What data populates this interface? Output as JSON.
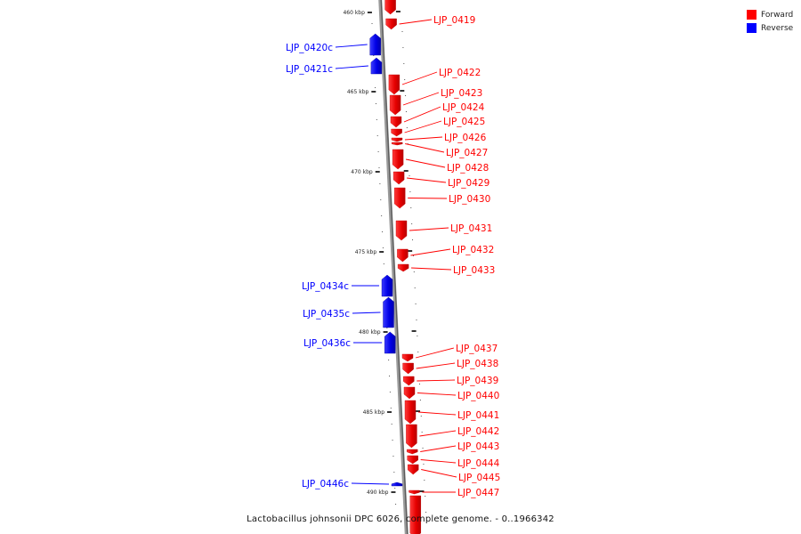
{
  "legend": [
    {
      "label": "Forward",
      "color": "#ff0000"
    },
    {
      "label": "Reverse",
      "color": "#0000ff"
    }
  ],
  "caption": "Lactobacillus johnsonii DPC 6026, complete genome. - 0..1966342",
  "ticks": [
    {
      "kbp": 460,
      "label": "460 kbp"
    },
    {
      "kbp": 465,
      "label": "465 kbp"
    },
    {
      "kbp": 470,
      "label": "470 kbp"
    },
    {
      "kbp": 475,
      "label": "475 kbp"
    },
    {
      "kbp": 480,
      "label": "480 kbp"
    },
    {
      "kbp": 485,
      "label": "485 kbp"
    },
    {
      "kbp": 490,
      "label": "490 kbp"
    }
  ],
  "genes": [
    {
      "name": "",
      "strand": "forward"
    },
    {
      "name": "LJP_0419",
      "strand": "forward"
    },
    {
      "name": "LJP_0420c",
      "strand": "reverse"
    },
    {
      "name": "LJP_0421c",
      "strand": "reverse"
    },
    {
      "name": "LJP_0422",
      "strand": "forward"
    },
    {
      "name": "LJP_0423",
      "strand": "forward"
    },
    {
      "name": "LJP_0424",
      "strand": "forward"
    },
    {
      "name": "LJP_0425",
      "strand": "forward"
    },
    {
      "name": "LJP_0426",
      "strand": "forward"
    },
    {
      "name": "LJP_0427",
      "strand": "forward"
    },
    {
      "name": "LJP_0428",
      "strand": "forward"
    },
    {
      "name": "LJP_0429",
      "strand": "forward"
    },
    {
      "name": "LJP_0430",
      "strand": "forward"
    },
    {
      "name": "LJP_0431",
      "strand": "forward"
    },
    {
      "name": "LJP_0432",
      "strand": "forward"
    },
    {
      "name": "LJP_0433",
      "strand": "forward"
    },
    {
      "name": "LJP_0434c",
      "strand": "reverse"
    },
    {
      "name": "LJP_0435c",
      "strand": "reverse"
    },
    {
      "name": "LJP_0436c",
      "strand": "reverse"
    },
    {
      "name": "LJP_0437",
      "strand": "forward"
    },
    {
      "name": "LJP_0438",
      "strand": "forward"
    },
    {
      "name": "LJP_0439",
      "strand": "forward"
    },
    {
      "name": "LJP_0440",
      "strand": "forward"
    },
    {
      "name": "LJP_0441",
      "strand": "forward"
    },
    {
      "name": "LJP_0442",
      "strand": "forward"
    },
    {
      "name": "LJP_0443",
      "strand": "forward"
    },
    {
      "name": "LJP_0444",
      "strand": "forward"
    },
    {
      "name": "LJP_0445",
      "strand": "forward"
    },
    {
      "name": "LJP_0446c",
      "strand": "reverse"
    },
    {
      "name": "LJP_0447",
      "strand": "forward"
    },
    {
      "name": "",
      "strand": "forward"
    }
  ]
}
